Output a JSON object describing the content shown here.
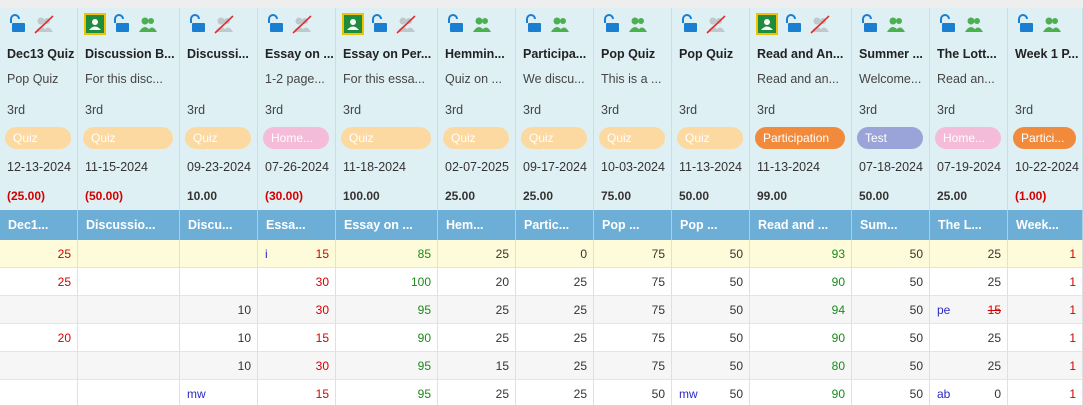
{
  "columns": [
    {
      "title": "Dec13 Quiz",
      "description": "Pop Quiz",
      "grade": "3rd",
      "tag": "Quiz",
      "tag_color": "#fcd9a1",
      "date": "12-13-2024",
      "points": "(25.00)",
      "points_color": "#d40000",
      "short": "Dec1...",
      "value_color": "#d40000"
    },
    {
      "title": "Discussion B...",
      "description": "For this disc...",
      "grade": "3rd",
      "tag": "Quiz",
      "tag_color": "#fcd9a1",
      "date": "11-15-2024",
      "points": "(50.00)",
      "points_color": "#d40000",
      "short": "Discussio...",
      "value_color": "#333333"
    },
    {
      "title": "Discussi...",
      "description": null,
      "grade": "3rd",
      "tag": "Quiz",
      "tag_color": "#fcd9a1",
      "date": "09-23-2024",
      "points": "10.00",
      "points_color": "#333333",
      "short": "Discu...",
      "value_color": "#333333"
    },
    {
      "title": "Essay on ...",
      "description": "1-2 page...",
      "grade": "3rd",
      "tag": "Home...",
      "tag_color": "#f5bcd9",
      "date": "07-26-2024",
      "points": "(30.00)",
      "points_color": "#d40000",
      "short": "Essa...",
      "value_color": "#d40000"
    },
    {
      "title": "Essay on Per...",
      "description": "For this essa...",
      "grade": "3rd",
      "tag": "Quiz",
      "tag_color": "#fcd9a1",
      "date": "11-18-2024",
      "points": "100.00",
      "points_color": "#333333",
      "short": "Essay on ...",
      "value_color": "#1a8a1a"
    },
    {
      "title": "Hemmin...",
      "description": "Quiz on ...",
      "grade": "3rd",
      "tag": "Quiz",
      "tag_color": "#fcd9a1",
      "date": "02-07-2025",
      "points": "25.00",
      "points_color": "#333333",
      "short": "Hem...",
      "value_color": "#333333"
    },
    {
      "title": "Participa...",
      "description": "We discu...",
      "grade": "3rd",
      "tag": "Quiz",
      "tag_color": "#fcd9a1",
      "date": "09-17-2024",
      "points": "25.00",
      "points_color": "#333333",
      "short": "Partic...",
      "value_color": "#333333"
    },
    {
      "title": "Pop Quiz",
      "description": "This is a ...",
      "grade": "3rd",
      "tag": "Quiz",
      "tag_color": "#fcd9a1",
      "date": "10-03-2024",
      "points": "75.00",
      "points_color": "#333333",
      "short": "Pop ...",
      "value_color": "#333333"
    },
    {
      "title": "Pop Quiz",
      "description": null,
      "grade": "3rd",
      "tag": "Quiz",
      "tag_color": "#fcd9a1",
      "date": "11-13-2024",
      "points": "50.00",
      "points_color": "#333333",
      "short": "Pop ...",
      "value_color": "#333333"
    },
    {
      "title": "Read and An...",
      "description": "Read and an...",
      "grade": "3rd",
      "tag": "Participation",
      "tag_color": "#f28a3c",
      "date": "11-13-2024",
      "points": "99.00",
      "points_color": "#333333",
      "short": "Read and ...",
      "value_color": "#1a8a1a"
    },
    {
      "title": "Summer ...",
      "description": "Welcome...",
      "grade": "3rd",
      "tag": "Test",
      "tag_color": "#9ba4d8",
      "date": "07-18-2024",
      "points": "50.00",
      "points_color": "#333333",
      "short": "Sum...",
      "value_color": "#333333"
    },
    {
      "title": "The Lott...",
      "description": "Read an...",
      "grade": "3rd",
      "tag": "Home...",
      "tag_color": "#f5bcd9",
      "date": "07-19-2024",
      "points": "25.00",
      "points_color": "#333333",
      "short": "The L...",
      "value_color": "#333333"
    },
    {
      "title": "Week 1 P...",
      "description": null,
      "grade": "3rd",
      "tag": "Partici...",
      "tag_color": "#f28a3c",
      "date": "10-22-2024",
      "points": "(1.00)",
      "points_color": "#d40000",
      "short": "Week...",
      "value_color": "#d40000"
    }
  ],
  "rows": [
    [
      25,
      null,
      null,
      {
        "note": "i",
        "value": 15
      },
      85,
      25,
      0,
      75,
      50,
      93,
      50,
      25,
      1
    ],
    [
      25,
      null,
      null,
      30,
      100,
      20,
      25,
      75,
      50,
      90,
      50,
      25,
      1
    ],
    [
      null,
      null,
      10,
      30,
      95,
      25,
      25,
      75,
      50,
      94,
      50,
      {
        "note": "pe",
        "value": 15,
        "color": "#d40000",
        "strike": true
      },
      1
    ],
    [
      20,
      null,
      10,
      15,
      90,
      25,
      25,
      75,
      50,
      90,
      50,
      25,
      1
    ],
    [
      null,
      null,
      10,
      30,
      95,
      15,
      25,
      75,
      50,
      80,
      50,
      25,
      1
    ],
    [
      null,
      null,
      {
        "note": "mw"
      },
      15,
      95,
      25,
      25,
      50,
      {
        "note": "mw",
        "value": 50
      },
      90,
      50,
      {
        "note": "ab",
        "value": 0
      },
      1
    ]
  ]
}
